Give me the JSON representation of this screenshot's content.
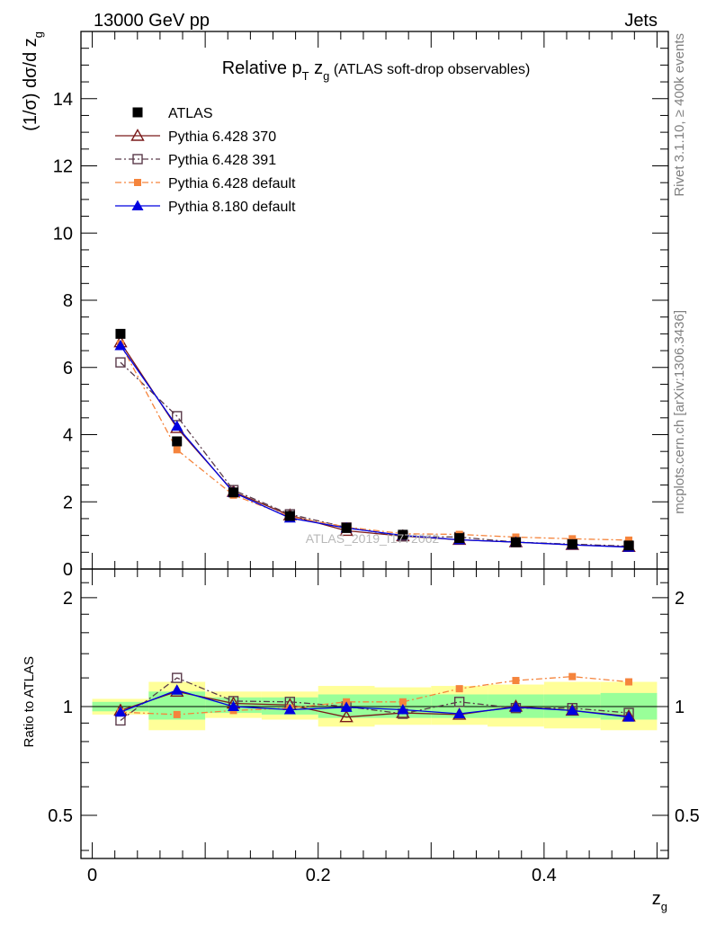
{
  "header": {
    "left": "13000 GeV pp",
    "right": "Jets"
  },
  "side_labels": {
    "rivet": "Rivet 3.1.10, ≥ 400k events",
    "mcplots": "mcplots.cern.ch [arXiv:1306.3436]"
  },
  "chart_data": [
    {
      "type": "line",
      "title": "Relative pT zg (ATLAS soft-drop observables)",
      "title_parts": {
        "main": "Relative p",
        "sub_t": "T",
        "mid": " z",
        "sub_g": "g",
        "paren": " (ATLAS soft-drop observables)"
      },
      "ylabel": "(1/σ) dσ/d z_g",
      "ylabel_parts": {
        "main": "(1/σ) dσ/d z",
        "sub": "g"
      },
      "xlabel": "z_g",
      "xlabel_parts": {
        "main": "z",
        "sub": "g"
      },
      "watermark": "ATLAS_2019_I1772062",
      "xlim": [
        -0.01,
        0.51
      ],
      "ylim": [
        0,
        16
      ],
      "yticks": [
        0,
        2,
        4,
        6,
        8,
        10,
        12,
        14
      ],
      "ytick_labels": [
        "0",
        "2",
        "4",
        "6",
        "8",
        "10",
        "12",
        "14"
      ],
      "x": [
        0.025,
        0.075,
        0.125,
        0.175,
        0.225,
        0.275,
        0.325,
        0.375,
        0.425,
        0.475
      ],
      "legend_position": "top-left",
      "series": [
        {
          "name": "ATLAS",
          "color": "#000000",
          "marker": "square-filled",
          "line": "none",
          "values": [
            7.0,
            3.8,
            2.28,
            1.58,
            1.22,
            1.02,
            0.92,
            0.8,
            0.74,
            0.7
          ]
        },
        {
          "name": "Pythia 6.428 370",
          "color": "#7a1a1a",
          "marker": "triangle-open",
          "line": "solid",
          "values": [
            6.75,
            4.2,
            2.3,
            1.6,
            1.14,
            0.98,
            0.87,
            0.8,
            0.72,
            0.66
          ]
        },
        {
          "name": "Pythia 6.428 391",
          "color": "#5a3a4a",
          "marker": "square-open",
          "line": "dashdot",
          "values": [
            6.15,
            4.55,
            2.35,
            1.63,
            1.24,
            0.97,
            0.95,
            0.8,
            0.74,
            0.68
          ]
        },
        {
          "name": "Pythia 6.428 default",
          "color": "#f5843c",
          "marker": "square-filled-small",
          "line": "dashdot",
          "values": [
            6.7,
            3.55,
            2.2,
            1.56,
            1.25,
            1.05,
            1.03,
            0.95,
            0.9,
            0.86
          ]
        },
        {
          "name": "Pythia 8.180 default",
          "color": "#0000e0",
          "marker": "triangle-filled",
          "line": "solid",
          "values": [
            6.65,
            4.25,
            2.28,
            1.52,
            1.22,
            1.0,
            0.87,
            0.8,
            0.72,
            0.65
          ]
        }
      ]
    },
    {
      "type": "line",
      "ylabel": "Ratio to ATLAS",
      "xlabel": "z_g",
      "xlim": [
        -0.01,
        0.51
      ],
      "ylim": [
        0.38,
        2.4
      ],
      "y_scale": "log",
      "yticks": [
        0.5,
        1,
        2
      ],
      "ytick_labels": [
        "0.5",
        "1",
        "2"
      ],
      "xticks": [
        0,
        0.2,
        0.4
      ],
      "xtick_labels": [
        "0",
        "0.2",
        "0.4"
      ],
      "x": [
        0.025,
        0.075,
        0.125,
        0.175,
        0.225,
        0.275,
        0.325,
        0.375,
        0.425,
        0.475
      ],
      "bins": [
        [
          0.0,
          0.05
        ],
        [
          0.05,
          0.1
        ],
        [
          0.1,
          0.15
        ],
        [
          0.15,
          0.2
        ],
        [
          0.2,
          0.25
        ],
        [
          0.25,
          0.3
        ],
        [
          0.3,
          0.35
        ],
        [
          0.35,
          0.4
        ],
        [
          0.4,
          0.45
        ],
        [
          0.45,
          0.5
        ]
      ],
      "band_stat": [
        [
          0.97,
          1.03
        ],
        [
          0.92,
          1.1
        ],
        [
          0.96,
          1.06
        ],
        [
          0.95,
          1.06
        ],
        [
          0.93,
          1.08
        ],
        [
          0.93,
          1.08
        ],
        [
          0.93,
          1.08
        ],
        [
          0.93,
          1.08
        ],
        [
          0.93,
          1.08
        ],
        [
          0.92,
          1.09
        ]
      ],
      "band_total": [
        [
          0.95,
          1.05
        ],
        [
          0.86,
          1.17
        ],
        [
          0.93,
          1.1
        ],
        [
          0.92,
          1.1
        ],
        [
          0.88,
          1.14
        ],
        [
          0.89,
          1.13
        ],
        [
          0.89,
          1.14
        ],
        [
          0.88,
          1.15
        ],
        [
          0.87,
          1.17
        ],
        [
          0.86,
          1.17
        ]
      ],
      "series": [
        {
          "name": "Pythia 6.428 370",
          "color": "#7a1a1a",
          "marker": "triangle-open",
          "line": "solid",
          "values": [
            0.975,
            1.1,
            1.02,
            1.01,
            0.935,
            0.96,
            0.95,
            1.0,
            0.975,
            0.94
          ]
        },
        {
          "name": "Pythia 6.428 391",
          "color": "#5a3a4a",
          "marker": "square-open",
          "line": "dashdot",
          "values": [
            0.915,
            1.2,
            1.035,
            1.03,
            1.0,
            0.955,
            1.03,
            0.99,
            0.99,
            0.96
          ]
        },
        {
          "name": "Pythia 6.428 default",
          "color": "#f5843c",
          "marker": "square-filled-small",
          "line": "dashdot",
          "values": [
            0.965,
            0.95,
            0.975,
            0.99,
            1.03,
            1.03,
            1.12,
            1.18,
            1.21,
            1.17
          ]
        },
        {
          "name": "Pythia 8.180 default",
          "color": "#0000e0",
          "marker": "triangle-filled",
          "line": "solid",
          "values": [
            0.965,
            1.11,
            1.0,
            0.98,
            0.995,
            0.98,
            0.955,
            0.995,
            0.975,
            0.935
          ]
        }
      ]
    }
  ]
}
